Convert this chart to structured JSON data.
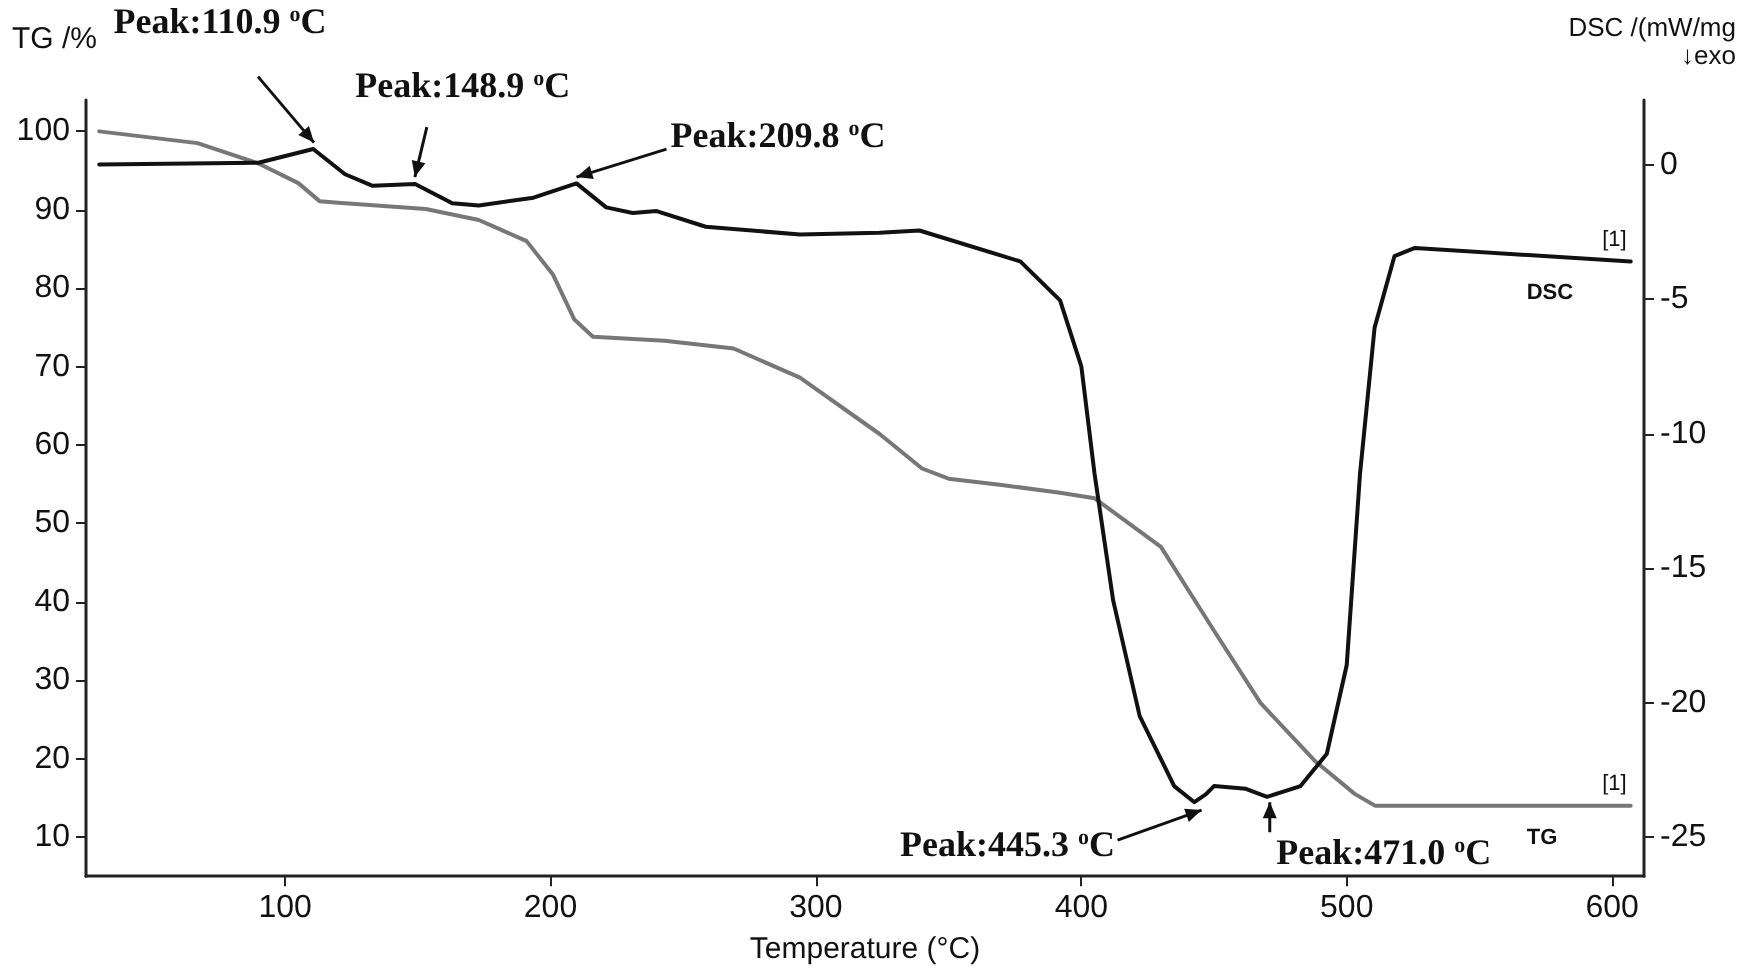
{
  "chart_data": {
    "type": "line",
    "xlabel": "Temperature (°C)",
    "ylabel": "TG /%",
    "y2label": "DSC /(mW/mg\n↓exo",
    "xlim": [
      25,
      612
    ],
    "xticks": [
      100,
      200,
      300,
      400,
      500,
      600
    ],
    "ylim": [
      5,
      104
    ],
    "yticks": [
      10,
      20,
      30,
      40,
      50,
      60,
      70,
      80,
      90,
      100
    ],
    "y2lim": [
      -26.45,
      2.4
    ],
    "y2ticks": [
      -25,
      -20,
      -15,
      -10,
      -5,
      0
    ],
    "grid": false,
    "legend": false,
    "marker": "none",
    "line_style": "solid",
    "series": [
      {
        "name": "TG",
        "color": "#777777",
        "x": [
          30,
          67,
          90,
          105,
          113,
          120,
          153,
          173,
          191,
          201,
          209,
          216,
          243,
          269,
          294,
          324,
          340,
          350,
          370,
          392,
          405,
          430,
          450,
          467.5,
          488,
          503,
          510.6,
          607
        ],
        "values": [
          100,
          98.5,
          95.9,
          93.4,
          91.1,
          90.9,
          90.1,
          88.7,
          86,
          81.7,
          76,
          73.8,
          73.3,
          72.3,
          68.6,
          61.4,
          57,
          55.7,
          54.9,
          53.9,
          53.2,
          47,
          36.3,
          27.1,
          19.7,
          15.5,
          14,
          14
        ]
      },
      {
        "name": "DSC",
        "color": "#111111",
        "axis": "y2",
        "x": [
          30,
          90,
          110.6,
          122.6,
          133,
          149,
          163,
          173,
          193.6,
          209.8,
          221,
          231,
          240,
          258.5,
          294,
          324,
          339,
          377,
          392,
          400,
          405,
          412,
          422,
          435,
          442.6,
          447,
          450,
          462,
          470,
          482.6,
          492.5,
          500,
          505,
          510.5,
          518,
          525.7,
          607
        ],
        "values": [
          0,
          0.07,
          0.58,
          -0.36,
          -0.79,
          -0.72,
          -1.44,
          -1.52,
          -1.23,
          -0.7,
          -1.59,
          -1.8,
          -1.73,
          -2.31,
          -2.6,
          -2.53,
          -2.45,
          -3.6,
          -5.05,
          -7.5,
          -11.5,
          -16.2,
          -20.5,
          -23.1,
          -23.7,
          -23.4,
          -23.1,
          -23.2,
          -23.5,
          -23.1,
          -21.9,
          -18.6,
          -11.5,
          -6.06,
          -3.4,
          -3.1,
          -3.6
        ]
      }
    ],
    "annotations": [
      {
        "text": "Peak:110.9 $^{o}$C",
        "x": 110.9,
        "y": 97.8
      },
      {
        "text": "Peak:148.9 $^{o}$C",
        "x": 148.9,
        "y": 93.4
      },
      {
        "text": "Peak:209.8 $^{o}$C",
        "x": 209.8,
        "y": 93.4
      },
      {
        "text": "Peak:445.3 $^{o}$C",
        "x": 445.3,
        "y": 14.2
      },
      {
        "text": "Peak:471.0 $^{o}$C",
        "x": 471.0,
        "y": 15.2
      },
      {
        "text": "[1]",
        "x": 607,
        "y": 83.4
      },
      {
        "text": "[1]",
        "x": 607,
        "y": 14
      }
    ]
  }
}
